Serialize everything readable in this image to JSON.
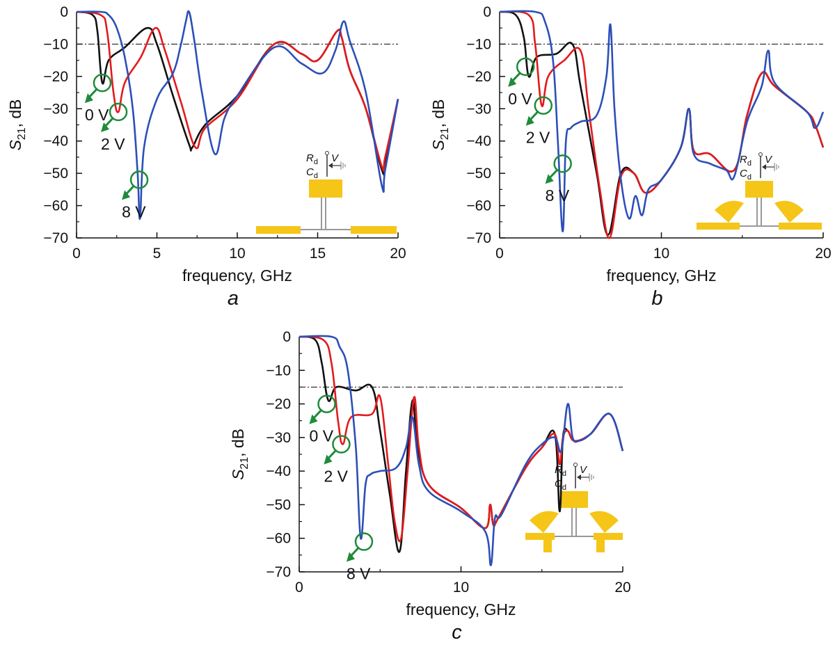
{
  "figure": {
    "line_colors": {
      "0V": "#111111",
      "2V": "#e31a1c",
      "8V": "#2c4fb8"
    },
    "marker_color": "#1e8b3a",
    "stub_color": "#f5c518"
  },
  "chart_data": [
    {
      "type": "line",
      "panel": "a",
      "xlabel": "frequency, GHz",
      "ylabel_main": "S",
      "ylabel_sub": "21",
      "ylabel_unit": ", dB",
      "xlim": [
        0,
        20
      ],
      "ylim": [
        -70,
        0
      ],
      "x_ticks": [
        0,
        5,
        10,
        15,
        20
      ],
      "x_tick_labels": [
        "0",
        "5",
        "10",
        "15",
        "20"
      ],
      "y_ticks": [
        0,
        -10,
        -20,
        -30,
        -40,
        -50,
        -60,
        -70
      ],
      "y_tick_labels": [
        "0",
        "−10",
        "−20",
        "−30",
        "−40",
        "−50",
        "−60",
        "−70"
      ],
      "threshold_db": -10,
      "inset_labels": {
        "r": "R",
        "r_sub": "d",
        "c": "C",
        "c_sub": "d",
        "v": "V"
      },
      "annotations": [
        {
          "label": "0 V",
          "marker": [
            1.6,
            -22
          ]
        },
        {
          "label": "2 V",
          "marker": [
            2.6,
            -31
          ]
        },
        {
          "label": "8 V",
          "marker": [
            3.9,
            -52
          ]
        }
      ],
      "series": [
        {
          "name": "0 V",
          "x": [
            0,
            1,
            1.3,
            1.6,
            2.0,
            3.0,
            4.4,
            5.0,
            6.0,
            7.0,
            7.2,
            8.0,
            10,
            12.3,
            14,
            15,
            16.2,
            16.5,
            17,
            18,
            19,
            19.2,
            20
          ],
          "y": [
            0,
            -1,
            -6,
            -22,
            -15,
            -11,
            -5,
            -10,
            -26,
            -41,
            -42,
            -35,
            -26,
            -10,
            -13,
            -15,
            -6,
            -8,
            -18,
            -30,
            -49,
            -46,
            -27
          ]
        },
        {
          "name": "2 V",
          "x": [
            0,
            1.5,
            1.9,
            2.3,
            2.6,
            3.0,
            4.0,
            4.9,
            5.5,
            6.5,
            7.4,
            8.0,
            10,
            12.3,
            14,
            15,
            16.2,
            16.5,
            17,
            18,
            19,
            19.2,
            20
          ],
          "y": [
            0,
            -1,
            -6,
            -25,
            -31,
            -22,
            -14,
            -5,
            -12,
            -28,
            -42,
            -36,
            -27,
            -10,
            -13,
            -15,
            -6,
            -8,
            -18,
            -30,
            -48,
            -45,
            -27
          ]
        },
        {
          "name": "8 V",
          "x": [
            0,
            1.5,
            2.0,
            2.5,
            3.0,
            3.5,
            3.8,
            3.95,
            4.2,
            5.0,
            6.0,
            6.5,
            6.8,
            7.0,
            7.3,
            7.8,
            8.6,
            9.2,
            10,
            12.3,
            14,
            15.3,
            16.1,
            16.6,
            17,
            18,
            19,
            19.2,
            20
          ],
          "y": [
            0,
            0,
            -1,
            -5,
            -14,
            -30,
            -50,
            -64,
            -42,
            -27,
            -19,
            -10,
            -3,
            0,
            -8,
            -25,
            -44,
            -33,
            -26,
            -11,
            -16,
            -19,
            -12,
            -3,
            -9,
            -25,
            -54,
            -49,
            -27
          ]
        }
      ]
    },
    {
      "type": "line",
      "panel": "b",
      "xlabel": "frequency, GHz",
      "ylabel_main": "S",
      "ylabel_sub": "21",
      "ylabel_unit": ", dB",
      "xlim": [
        0,
        20
      ],
      "ylim": [
        -70,
        0
      ],
      "x_ticks": [
        0,
        10,
        20
      ],
      "x_tick_labels": [
        "0",
        "10",
        "20"
      ],
      "y_ticks": [
        0,
        -10,
        -20,
        -30,
        -40,
        -50,
        -60,
        -70
      ],
      "y_tick_labels": [
        "0",
        "−10",
        "−20",
        "−30",
        "−40",
        "−50",
        "−60",
        "−70"
      ],
      "threshold_db": -10,
      "inset_labels": {
        "r": "R",
        "r_sub": "d",
        "c": "C",
        "c_sub": "d",
        "v": "V"
      },
      "annotations": [
        {
          "label": "0 V",
          "marker": [
            1.6,
            -17
          ]
        },
        {
          "label": "2 V",
          "marker": [
            2.7,
            -29
          ]
        },
        {
          "label": "8 V",
          "marker": [
            3.9,
            -47
          ]
        }
      ],
      "series": [
        {
          "name": "0 V",
          "x": [
            0,
            1.0,
            1.5,
            1.8,
            2.3,
            3.5,
            4.5,
            5.0,
            6.0,
            6.7,
            7.5,
            8.3,
            9.0,
            10,
            11.2,
            11.7,
            12.0,
            13.0,
            14.5,
            15.3,
            16.2,
            17,
            19,
            19.5,
            20
          ],
          "y": [
            0,
            -1,
            -8,
            -20,
            -14,
            -13,
            -10,
            -23,
            -50,
            -69,
            -50,
            -50,
            -56,
            -52,
            -42,
            -30,
            -43,
            -44,
            -49,
            -32,
            -19,
            -23,
            -31,
            -35,
            -42
          ]
        },
        {
          "name": "2 V",
          "x": [
            0,
            1.8,
            2.2,
            2.6,
            3.0,
            4.0,
            5.0,
            5.5,
            6.2,
            6.8,
            7.5,
            8.3,
            9.0,
            10,
            11.2,
            11.7,
            12.0,
            13.0,
            14.5,
            15.3,
            16.2,
            17,
            19,
            19.5,
            20
          ],
          "y": [
            0,
            -1,
            -10,
            -29,
            -20,
            -15,
            -12,
            -30,
            -55,
            -70,
            -51,
            -50,
            -56,
            -52,
            -42,
            -30,
            -43,
            -44,
            -49,
            -32,
            -19,
            -23,
            -31,
            -35,
            -42
          ]
        },
        {
          "name": "8 V",
          "x": [
            0,
            2.2,
            2.8,
            3.3,
            3.6,
            3.9,
            4.1,
            4.4,
            5.0,
            6.0,
            6.6,
            6.85,
            7.1,
            7.5,
            8.0,
            8.4,
            8.8,
            9.2,
            10,
            11.2,
            11.7,
            12.0,
            13.0,
            14.0,
            14.5,
            15.3,
            16.2,
            16.6,
            17,
            19,
            19.5,
            20
          ],
          "y": [
            0,
            0,
            -3,
            -15,
            -40,
            -68,
            -40,
            -36,
            -34,
            -32,
            -20,
            -4,
            -30,
            -52,
            -64,
            -57,
            -63,
            -55,
            -52,
            -42,
            -30,
            -44,
            -47,
            -49,
            -51,
            -34,
            -23,
            -12,
            -22,
            -31,
            -36,
            -31
          ]
        }
      ]
    },
    {
      "type": "line",
      "panel": "c",
      "xlabel": "frequency, GHz",
      "ylabel_main": "S",
      "ylabel_sub": "21",
      "ylabel_unit": ", dB",
      "xlim": [
        0,
        20
      ],
      "ylim": [
        -70,
        0
      ],
      "x_ticks": [
        0,
        10,
        20
      ],
      "x_tick_labels": [
        "0",
        "10",
        "20"
      ],
      "y_ticks": [
        0,
        -10,
        -20,
        -30,
        -40,
        -50,
        -60,
        -70
      ],
      "y_tick_labels": [
        "0",
        "−10",
        "−20",
        "−30",
        "−40",
        "−50",
        "−60",
        "−70"
      ],
      "threshold_db": -15,
      "inset_labels": {
        "r": "R",
        "r_sub": "d",
        "c": "C",
        "c_sub": "d",
        "v": "V"
      },
      "annotations": [
        {
          "label": "0 V",
          "marker": [
            1.7,
            -20
          ]
        },
        {
          "label": "2 V",
          "marker": [
            2.6,
            -32
          ]
        },
        {
          "label": "8 V",
          "marker": [
            4.0,
            -61
          ]
        }
      ],
      "series": [
        {
          "name": "0 V",
          "x": [
            0,
            1.0,
            1.4,
            1.8,
            2.3,
            3.5,
            4.5,
            5.0,
            5.6,
            6.2,
            6.6,
            7.0,
            7.3,
            8,
            10,
            11.5,
            11.8,
            12.0,
            12.3,
            14,
            15,
            15.8,
            16.1,
            16.3,
            16.6,
            17,
            18,
            19.2,
            20
          ],
          "y": [
            0,
            -1,
            -8,
            -19,
            -15,
            -16,
            -15,
            -28,
            -47,
            -64,
            -40,
            -19,
            -32,
            -44,
            -51,
            -57,
            -50,
            -56,
            -54,
            -39,
            -33,
            -29,
            -52,
            -30,
            -28,
            -31,
            -29,
            -23,
            -34
          ]
        },
        {
          "name": "2 V",
          "x": [
            0,
            1.5,
            2.0,
            2.4,
            2.7,
            3.2,
            4.5,
            5.0,
            5.5,
            5.9,
            6.3,
            6.7,
            7.1,
            7.4,
            8,
            10,
            11.5,
            11.8,
            12.0,
            12.3,
            14,
            15,
            15.8,
            16.1,
            16.3,
            16.6,
            17,
            18,
            19.2,
            20
          ],
          "y": [
            0,
            -1,
            -8,
            -25,
            -32,
            -24,
            -23,
            -18,
            -38,
            -55,
            -60,
            -40,
            -18,
            -33,
            -44,
            -51,
            -57,
            -50,
            -56,
            -54,
            -39,
            -33,
            -29,
            -38,
            -30,
            -28,
            -31,
            -29,
            -23,
            -34
          ]
        },
        {
          "name": "8 V",
          "x": [
            0,
            2.0,
            2.5,
            3.0,
            3.5,
            3.8,
            4.1,
            4.4,
            5.0,
            6.0,
            6.6,
            7.0,
            7.4,
            8,
            10,
            11.5,
            11.85,
            12.1,
            12.5,
            14,
            15,
            15.8,
            16.2,
            16.6,
            16.9,
            17.3,
            18,
            19.2,
            20
          ],
          "y": [
            0,
            0,
            -3,
            -10,
            -33,
            -60,
            -44,
            -41,
            -40,
            -39,
            -33,
            -24,
            -38,
            -46,
            -52,
            -58,
            -68,
            -54,
            -53,
            -38,
            -32,
            -30,
            -34,
            -20,
            -30,
            -31,
            -29,
            -23,
            -34
          ]
        }
      ]
    }
  ]
}
